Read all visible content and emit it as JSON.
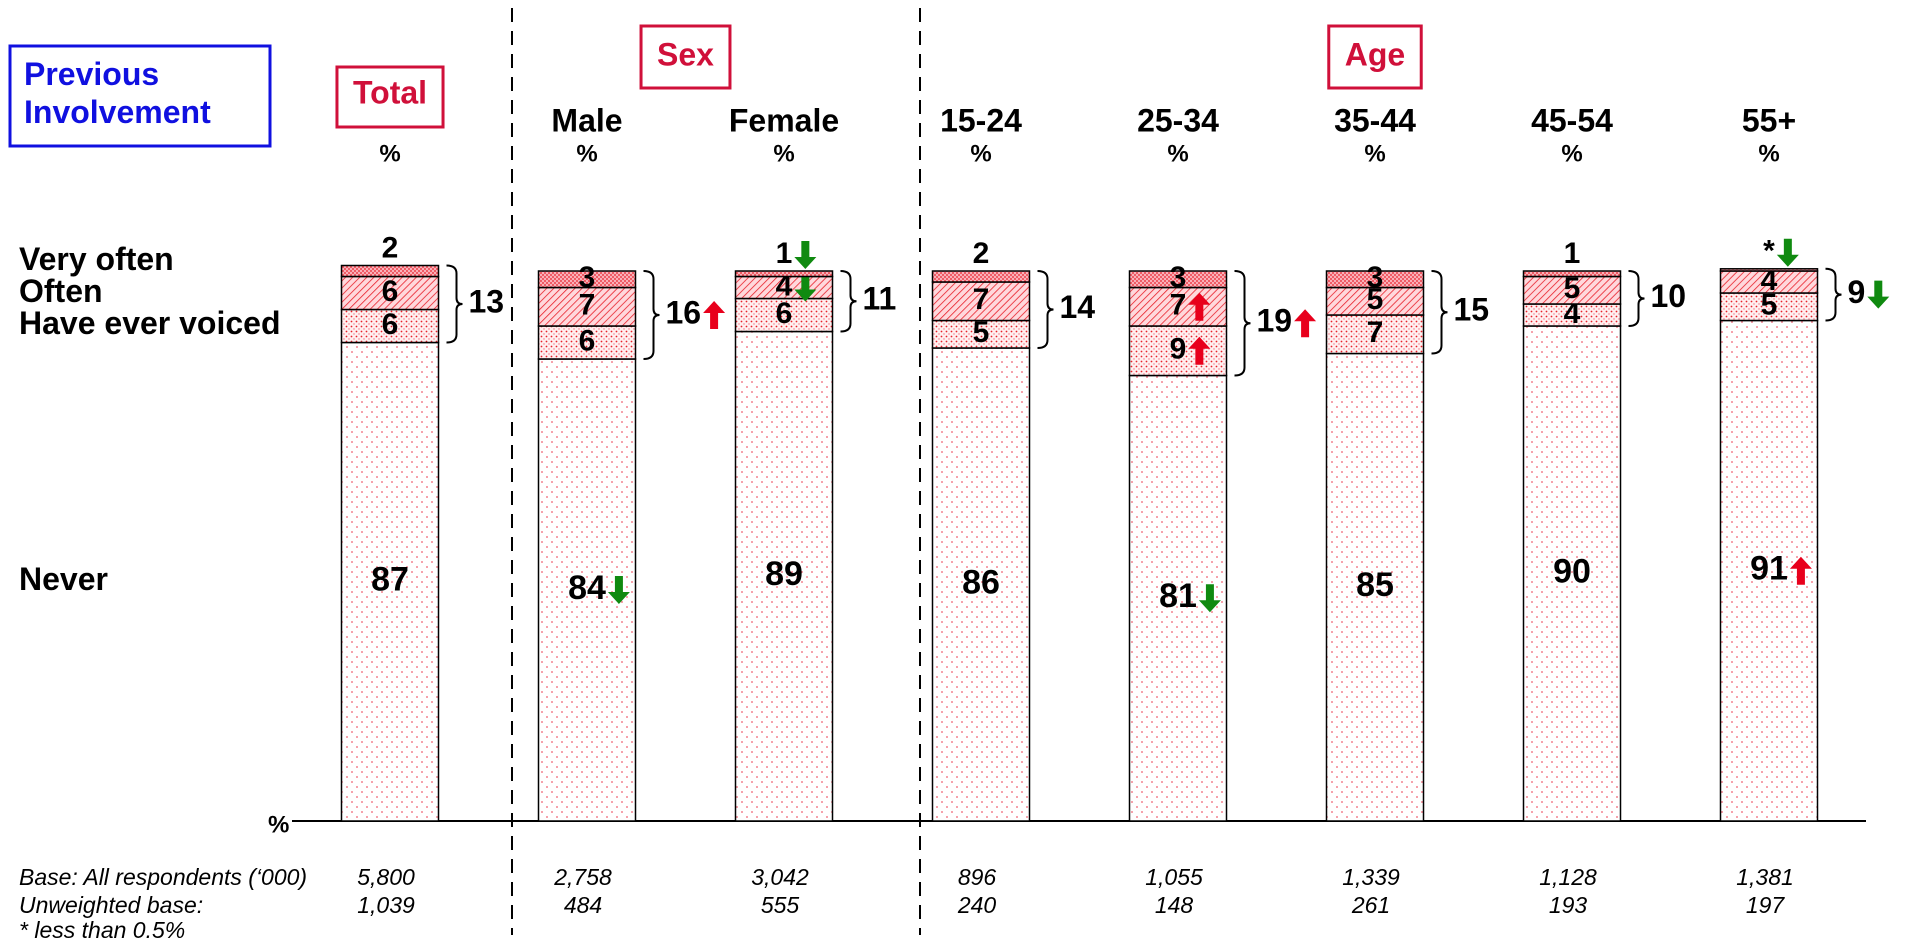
{
  "chart_data": {
    "type": "stacked_bar",
    "title": "Previous Involvement",
    "categories": [
      "Total",
      "Male",
      "Female",
      "15-24",
      "25-34",
      "35-44",
      "45-54",
      "55+"
    ],
    "groups": [
      {
        "label": "Sex",
        "members": [
          "Male",
          "Female"
        ]
      },
      {
        "label": "Age",
        "members": [
          "15-24",
          "25-34",
          "35-44",
          "45-54",
          "55+"
        ]
      }
    ],
    "boxed_category": "Total",
    "unit_label": "%",
    "ylim": [
      0,
      100
    ],
    "series": [
      {
        "name": "Never",
        "pattern": "dots-sparse",
        "color": "#e8202a",
        "values": [
          87,
          84,
          89,
          86,
          81,
          85,
          90,
          91
        ],
        "significance": [
          null,
          "down",
          null,
          null,
          "down",
          null,
          null,
          "up"
        ]
      },
      {
        "name": "Have ever voiced",
        "pattern": "dots-dense",
        "color": "#e8202a",
        "values": [
          6,
          6,
          6,
          5,
          9,
          7,
          4,
          5
        ],
        "significance": [
          null,
          null,
          null,
          null,
          "up",
          null,
          null,
          null
        ]
      },
      {
        "name": "Often",
        "pattern": "hatch",
        "color": "#e8202a",
        "values": [
          6,
          7,
          4,
          7,
          7,
          5,
          5,
          4
        ],
        "significance": [
          null,
          null,
          "down",
          null,
          "up",
          null,
          null,
          null
        ]
      },
      {
        "name": "Very often",
        "pattern": "cross",
        "color": "#e8202a",
        "values": [
          2,
          3,
          1,
          2,
          3,
          3,
          1,
          0.4
        ],
        "value_labels": [
          "2",
          "3",
          "1",
          "2",
          "3",
          "3",
          "1",
          "*"
        ],
        "significance": [
          null,
          null,
          "down",
          null,
          null,
          null,
          null,
          "down"
        ]
      }
    ],
    "net": {
      "values": [
        13,
        16,
        11,
        14,
        19,
        15,
        10,
        9
      ],
      "significance": [
        null,
        "up",
        null,
        null,
        "up",
        null,
        null,
        "down"
      ]
    },
    "bases": [
      {
        "label": "Base: All respondents (‘000)",
        "values": [
          "5,800",
          "2,758",
          "3,042",
          "896",
          "1,055",
          "1,339",
          "1,128",
          "1,381"
        ]
      },
      {
        "label": "Unweighted base:",
        "values": [
          "1,039",
          "484",
          "555",
          "240",
          "148",
          "261",
          "193",
          "197"
        ]
      }
    ],
    "footnote": "* less than 0.5%",
    "up_color": "#e8001c",
    "down_color": "#108a10"
  }
}
